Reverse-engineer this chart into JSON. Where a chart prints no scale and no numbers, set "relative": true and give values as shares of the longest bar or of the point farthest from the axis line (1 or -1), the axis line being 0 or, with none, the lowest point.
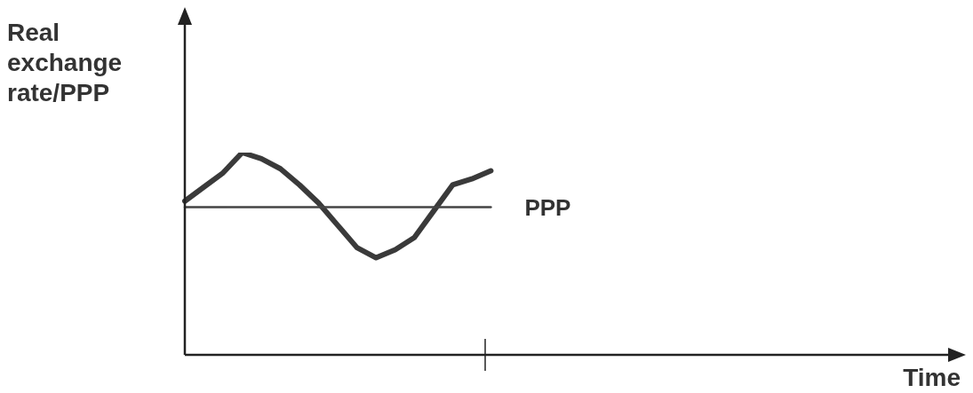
{
  "chart_data": {
    "type": "line",
    "relative": true,
    "ylabel": "Real exchange rate/PPP",
    "xlabel": "Time",
    "categories": [
      null,
      null,
      null,
      null,
      null,
      null,
      null,
      null,
      null,
      null,
      null,
      null,
      null,
      null,
      null,
      null,
      null,
      null,
      null,
      null,
      null,
      null,
      null,
      null,
      null,
      null,
      null,
      null,
      null,
      null,
      null,
      null,
      null,
      null,
      null,
      null,
      null,
      null,
      null,
      null,
      null
    ],
    "series": [
      {
        "color": "#3a3a3a",
        "values": [
          0.76,
          0.83,
          0.9,
          1.0,
          0.97,
          0.92,
          0.84,
          0.75,
          0.64,
          0.53,
          0.48,
          0.52,
          0.58,
          0.71,
          0.84,
          0.87,
          0.91,
          null,
          null,
          null,
          null,
          null,
          null,
          null,
          null,
          null,
          null,
          null,
          null,
          null,
          null,
          null,
          null,
          null,
          null,
          null,
          null,
          null,
          null,
          null,
          null
        ]
      },
      {
        "name": "PPP",
        "color": "#444444",
        "values": [
          0.73,
          0.73,
          0.73,
          0.73,
          0.73,
          0.73,
          0.73,
          0.73,
          0.73,
          0.73,
          0.73,
          0.73,
          0.73,
          0.73,
          0.73,
          0.73,
          0.73,
          null,
          null,
          null,
          null,
          null,
          null,
          null,
          null,
          null,
          null,
          null,
          null,
          null,
          null,
          null,
          null,
          null,
          null,
          null,
          null,
          null,
          null,
          null,
          null
        ]
      }
    ],
    "grid": false,
    "legend": false,
    "marker": "none",
    "line_style": "solid"
  }
}
